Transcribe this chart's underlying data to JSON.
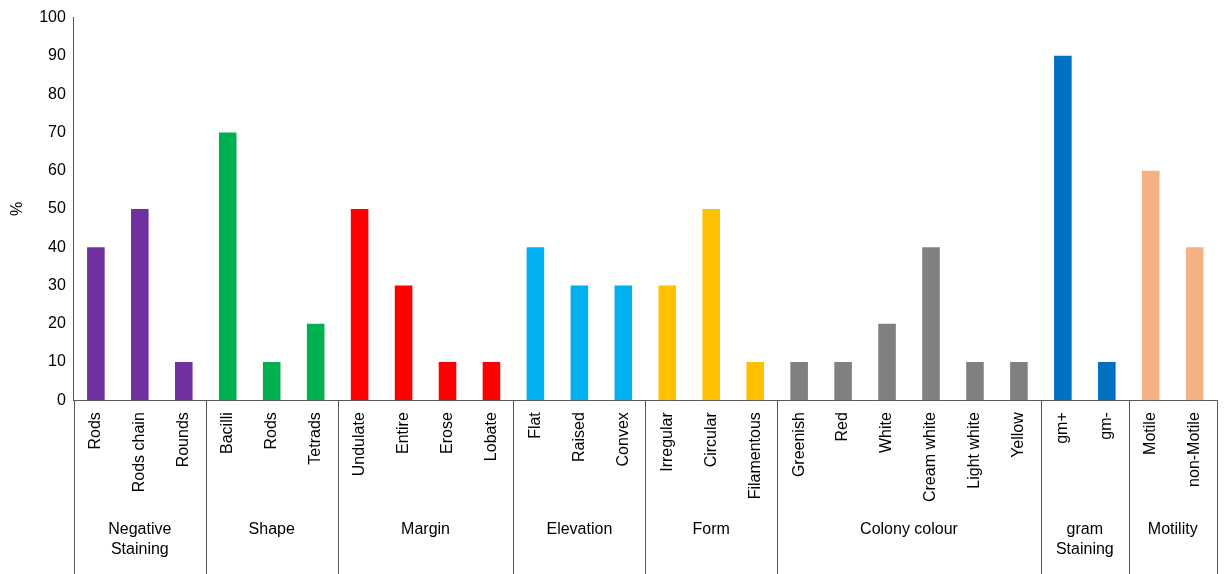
{
  "chart_data": {
    "type": "bar",
    "ylabel": "%",
    "categories": [
      "Rods",
      "Rods chain",
      "Rounds",
      "Bacilli",
      "Rods",
      "Tetrads",
      "Undulate",
      "Entire",
      "Erose",
      "Lobate",
      "Flat",
      "Raised",
      "Convex",
      "Irregular",
      "Circular",
      "Filamentous",
      "Greenish",
      "Red",
      "White",
      "Cream white",
      "Light white",
      "Yellow",
      "gm+",
      "gm-",
      "Motile",
      "non-Motile"
    ],
    "values": [
      40,
      50,
      10,
      70,
      10,
      20,
      50,
      30,
      10,
      10,
      40,
      30,
      30,
      30,
      50,
      10,
      10,
      10,
      20,
      40,
      10,
      10,
      90,
      10,
      60,
      40
    ],
    "colors": [
      "#7030a0",
      "#7030a0",
      "#7030a0",
      "#00b050",
      "#00b050",
      "#00b050",
      "#ff0000",
      "#ff0000",
      "#ff0000",
      "#ff0000",
      "#00b0f0",
      "#00b0f0",
      "#00b0f0",
      "#ffc000",
      "#ffc000",
      "#ffc000",
      "#808080",
      "#808080",
      "#808080",
      "#808080",
      "#808080",
      "#808080",
      "#0070c0",
      "#0070c0",
      "#f4b183",
      "#f4b183"
    ],
    "ylim": [
      0,
      100
    ],
    "yticks": [
      0,
      10,
      20,
      30,
      40,
      50,
      60,
      70,
      80,
      90,
      100
    ],
    "grid": false,
    "legend": false,
    "annotations": [
      "Negative Staining",
      "Shape",
      "Margin",
      "Elevation",
      "Form",
      "Colony colour",
      "gram Staining",
      "Motility"
    ]
  }
}
